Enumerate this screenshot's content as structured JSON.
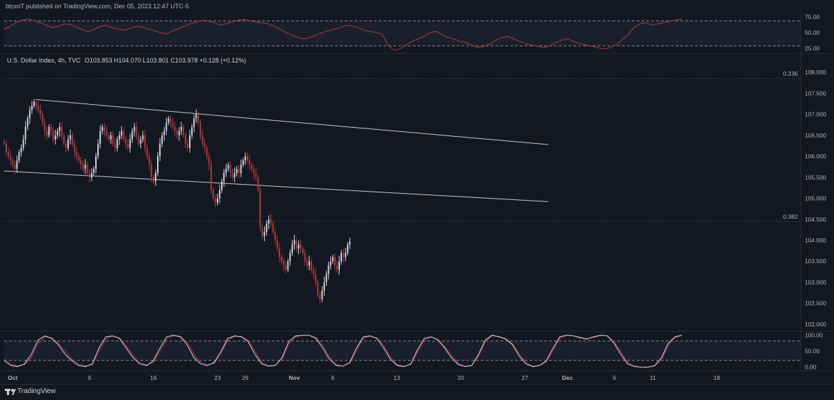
{
  "header": {
    "published_by": "btcxoT published on TradingView.com, Dec 05, 2023 12:47 UTC-5"
  },
  "symbol": {
    "name": "U.S. Dollar Index, 4h, TVC",
    "ohlc_text": "O103.853 H104.070 L103.801 C103.978 +0.128 (+0.12%)"
  },
  "brand": {
    "name": "TradingView"
  },
  "colors": {
    "background": "#131722",
    "bull": "#d1d4dc",
    "bear": "#b03a3a",
    "rsi": "#b03a3a",
    "stoch_k": "#d1d4dc",
    "stoch_d": "#b03a3a",
    "channel": "#c8cbd3",
    "grid_text": "#b2b5be"
  },
  "chart_data": [
    {
      "type": "line",
      "name": "rsi_pane",
      "y_ticks": [
        "75.00",
        "50.00",
        "25.00"
      ],
      "bands": [
        70,
        30
      ],
      "ylim": [
        20,
        80
      ],
      "series": [
        {
          "name": "",
          "values": [
            55,
            60,
            66,
            70,
            72,
            69,
            66,
            62,
            58,
            60,
            64,
            63,
            59,
            55,
            52,
            55,
            60,
            62,
            58,
            56,
            54,
            57,
            60,
            59,
            56,
            53,
            50,
            48,
            52,
            56,
            60,
            64,
            67,
            70,
            69,
            66,
            62,
            64,
            67,
            70,
            71,
            69,
            67,
            66,
            64,
            60,
            56,
            50,
            46,
            42,
            40,
            42,
            46,
            50,
            53,
            55,
            58,
            62,
            61,
            58,
            54,
            52,
            50,
            48,
            30,
            22,
            24,
            30,
            36,
            40,
            44,
            50,
            52,
            47,
            42,
            40,
            36,
            34,
            30,
            26,
            28,
            32,
            38,
            42,
            44,
            40,
            36,
            32,
            30,
            28,
            26,
            29,
            34,
            38,
            40,
            36,
            33,
            30,
            28,
            26,
            24,
            26,
            30,
            38,
            46,
            58,
            64,
            66,
            62,
            64,
            66,
            68,
            70,
            72
          ]
        }
      ]
    },
    {
      "type": "candlestick",
      "name": "price_pane",
      "y_ticks": [
        "108.000",
        "107.500",
        "107.000",
        "106.500",
        "106.000",
        "105.500",
        "105.000",
        "104.500",
        "104.000",
        "103.500",
        "103.000",
        "102.500",
        "102.000"
      ],
      "ylim": [
        101.95,
        108.1
      ],
      "x_ticks": [
        {
          "label": "Oct",
          "bar": 4
        },
        {
          "label": "9",
          "bar": 40
        },
        {
          "label": "16",
          "bar": 70
        },
        {
          "label": "23",
          "bar": 100
        },
        {
          "label": "26",
          "bar": 113
        },
        {
          "label": "Nov",
          "bar": 136
        },
        {
          "label": "6",
          "bar": 154
        },
        {
          "label": "13",
          "bar": 184
        },
        {
          "label": "20",
          "bar": 214
        },
        {
          "label": "27",
          "bar": 244
        },
        {
          "label": "Dec",
          "bar": 264
        },
        {
          "label": "6",
          "bar": 286
        },
        {
          "label": "11",
          "bar": 304
        },
        {
          "label": "18",
          "bar": 334
        }
      ],
      "fib_levels": [
        {
          "label": "0.236",
          "value": 107.85
        },
        {
          "label": "0.382",
          "value": 104.45
        }
      ],
      "channel_lines": [
        {
          "from": [
            15,
            107.35
          ],
          "to": [
            255,
            106.28
          ]
        },
        {
          "from": [
            0,
            105.65
          ],
          "to": [
            255,
            104.92
          ]
        }
      ],
      "last_bar_ohlc": {
        "open": 103.853,
        "high": 104.07,
        "low": 103.801,
        "close": 103.978
      },
      "closes": [
        106.3,
        106.1,
        106.0,
        105.9,
        105.8,
        105.7,
        105.9,
        106.1,
        106.2,
        106.4,
        106.7,
        106.9,
        107.1,
        107.2,
        107.3,
        107.2,
        107.1,
        107.0,
        106.8,
        106.6,
        106.5,
        106.7,
        106.6,
        106.4,
        106.5,
        106.6,
        106.7,
        106.5,
        106.3,
        106.2,
        106.4,
        106.5,
        106.3,
        106.1,
        106.0,
        105.9,
        105.8,
        105.7,
        105.8,
        105.6,
        105.5,
        105.6,
        105.7,
        106.0,
        106.3,
        106.6,
        106.7,
        106.6,
        106.5,
        106.4,
        106.5,
        106.3,
        106.2,
        106.4,
        106.5,
        106.6,
        106.4,
        106.3,
        106.2,
        106.4,
        106.6,
        106.7,
        106.5,
        106.3,
        106.4,
        106.5,
        106.2,
        106.0,
        105.8,
        105.5,
        105.4,
        105.6,
        106.0,
        106.3,
        106.5,
        106.6,
        106.8,
        106.9,
        106.8,
        106.7,
        106.6,
        106.5,
        106.6,
        106.7,
        106.5,
        106.3,
        106.2,
        106.5,
        106.7,
        106.9,
        107.0,
        106.8,
        106.5,
        106.3,
        106.2,
        106.0,
        105.8,
        105.2,
        105.0,
        104.9,
        105.0,
        105.2,
        105.4,
        105.6,
        105.7,
        105.8,
        105.6,
        105.5,
        105.6,
        105.7,
        105.6,
        105.8,
        105.9,
        106.0,
        105.9,
        105.8,
        105.7,
        105.6,
        105.5,
        105.2,
        104.3,
        104.1,
        104.2,
        104.4,
        104.5,
        104.4,
        104.2,
        104.0,
        103.8,
        103.6,
        103.5,
        103.4,
        103.3,
        103.5,
        103.7,
        103.9,
        104.0,
        103.8,
        103.9,
        103.8,
        103.7,
        103.5,
        103.4,
        103.5,
        103.3,
        103.2,
        103.0,
        102.7,
        102.6,
        102.8,
        103.0,
        103.2,
        103.4,
        103.5,
        103.6,
        103.4,
        103.3,
        103.5,
        103.7,
        103.6,
        103.7,
        103.9,
        103.978
      ]
    },
    {
      "type": "line",
      "name": "stoch_pane",
      "y_ticks": [
        "100.00",
        "50.00",
        "0.00"
      ],
      "bands": [
        80,
        20
      ],
      "ylim": [
        -5,
        108
      ],
      "series": [
        {
          "name": "",
          "values": [
            20,
            5,
            2,
            10,
            40,
            85,
            98,
            90,
            70,
            40,
            20,
            5,
            2,
            10,
            60,
            95,
            98,
            90,
            60,
            30,
            10,
            5,
            20,
            60,
            95,
            100,
            95,
            70,
            30,
            10,
            5,
            15,
            50,
            90,
            98,
            95,
            80,
            40,
            10,
            3,
            5,
            30,
            80,
            98,
            100,
            100,
            90,
            60,
            25,
            5,
            3,
            15,
            60,
            95,
            98,
            90,
            60,
            25,
            5,
            2,
            10,
            55,
            90,
            95,
            85,
            60,
            30,
            8,
            2,
            5,
            40,
            85,
            100,
            95,
            88,
            70,
            35,
            10,
            2,
            5,
            20,
            60,
            95,
            100,
            98,
            92,
            88,
            95,
            100,
            98,
            75,
            40,
            10,
            2,
            0,
            0,
            5,
            30,
            75,
            95,
            100
          ]
        },
        {
          "name": "",
          "values": [
            25,
            10,
            4,
            8,
            30,
            75,
            95,
            92,
            75,
            50,
            25,
            10,
            4,
            8,
            50,
            88,
            97,
            92,
            68,
            38,
            15,
            7,
            15,
            50,
            88,
            98,
            96,
            78,
            40,
            15,
            7,
            12,
            42,
            85,
            96,
            96,
            84,
            50,
            15,
            5,
            5,
            25,
            72,
            95,
            99,
            100,
            93,
            68,
            32,
            8,
            4,
            12,
            52,
            90,
            97,
            92,
            68,
            32,
            8,
            3,
            8,
            48,
            85,
            94,
            88,
            65,
            38,
            12,
            3,
            5,
            34,
            80,
            98,
            96,
            90,
            74,
            42,
            14,
            3,
            5,
            16,
            52,
            90,
            99,
            98,
            94,
            89,
            93,
            99,
            98,
            80,
            48,
            15,
            4,
            0,
            0,
            4,
            24,
            68,
            92,
            99
          ]
        }
      ]
    }
  ]
}
